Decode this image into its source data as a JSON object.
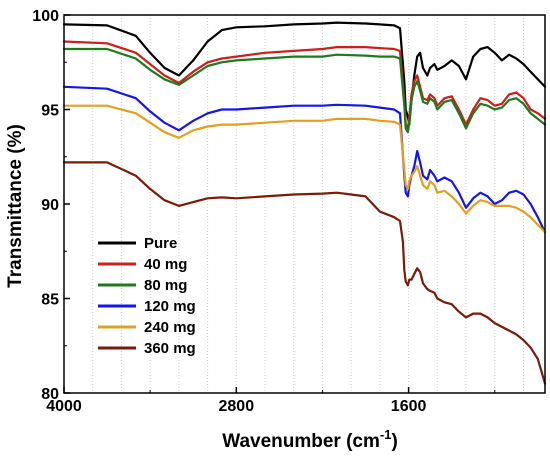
{
  "chart_data": {
    "type": "line",
    "xlabel": "Wavenumber (cm",
    "xlabel_sup": "-1",
    "xlabel_tail": ")",
    "ylabel": "Transmittance (%)",
    "xlim": [
      4000,
      650
    ],
    "ylim": [
      80,
      100
    ],
    "x_ticks": [
      4000,
      2800,
      1600
    ],
    "y_ticks": [
      80,
      85,
      90,
      95,
      100
    ],
    "grid": true,
    "legend_position": "bottom-left",
    "colors": {
      "Pure": "#000000",
      "40 mg": "#cc1f1a",
      "80 mg": "#1f7a1f",
      "120 mg": "#1515e6",
      "240 mg": "#e0a020",
      "360 mg": "#7a1a0a"
    },
    "series": [
      {
        "name": "Pure",
        "points": [
          [
            4000,
            99.5
          ],
          [
            3700,
            99.45
          ],
          [
            3500,
            98.9
          ],
          [
            3400,
            98.0
          ],
          [
            3300,
            97.2
          ],
          [
            3200,
            96.8
          ],
          [
            3100,
            97.6
          ],
          [
            3000,
            98.6
          ],
          [
            2900,
            99.2
          ],
          [
            2800,
            99.35
          ],
          [
            2600,
            99.4
          ],
          [
            2400,
            99.5
          ],
          [
            2200,
            99.55
          ],
          [
            2100,
            99.6
          ],
          [
            1900,
            99.55
          ],
          [
            1800,
            99.5
          ],
          [
            1700,
            99.45
          ],
          [
            1660,
            99.3
          ],
          [
            1630,
            96.5
          ],
          [
            1620,
            95.0
          ],
          [
            1605,
            94.6
          ],
          [
            1595,
            94.2
          ],
          [
            1580,
            95.5
          ],
          [
            1560,
            96.8
          ],
          [
            1540,
            97.8
          ],
          [
            1520,
            98.0
          ],
          [
            1500,
            97.2
          ],
          [
            1470,
            96.8
          ],
          [
            1450,
            97.2
          ],
          [
            1420,
            97.4
          ],
          [
            1400,
            97.1
          ],
          [
            1350,
            97.3
          ],
          [
            1300,
            97.6
          ],
          [
            1250,
            97.3
          ],
          [
            1200,
            96.6
          ],
          [
            1150,
            97.8
          ],
          [
            1100,
            98.2
          ],
          [
            1050,
            98.3
          ],
          [
            1000,
            98.0
          ],
          [
            950,
            97.6
          ],
          [
            900,
            97.9
          ],
          [
            850,
            97.7
          ],
          [
            800,
            97.4
          ],
          [
            750,
            97.0
          ],
          [
            700,
            96.6
          ],
          [
            650,
            96.2
          ]
        ]
      },
      {
        "name": "40 mg",
        "points": [
          [
            4000,
            98.6
          ],
          [
            3700,
            98.5
          ],
          [
            3500,
            98.0
          ],
          [
            3400,
            97.4
          ],
          [
            3300,
            96.8
          ],
          [
            3200,
            96.4
          ],
          [
            3100,
            97.0
          ],
          [
            3000,
            97.5
          ],
          [
            2900,
            97.7
          ],
          [
            2800,
            97.8
          ],
          [
            2600,
            98.0
          ],
          [
            2400,
            98.1
          ],
          [
            2200,
            98.2
          ],
          [
            2100,
            98.3
          ],
          [
            1900,
            98.3
          ],
          [
            1800,
            98.25
          ],
          [
            1700,
            98.2
          ],
          [
            1660,
            98.1
          ],
          [
            1630,
            95.5
          ],
          [
            1620,
            94.2
          ],
          [
            1605,
            94.0
          ],
          [
            1595,
            94.6
          ],
          [
            1580,
            95.8
          ],
          [
            1560,
            96.5
          ],
          [
            1540,
            96.8
          ],
          [
            1520,
            96.2
          ],
          [
            1500,
            95.6
          ],
          [
            1470,
            95.5
          ],
          [
            1450,
            95.8
          ],
          [
            1420,
            95.6
          ],
          [
            1400,
            95.2
          ],
          [
            1350,
            95.6
          ],
          [
            1300,
            95.7
          ],
          [
            1250,
            95.0
          ],
          [
            1200,
            94.2
          ],
          [
            1150,
            95.0
          ],
          [
            1100,
            95.6
          ],
          [
            1050,
            95.5
          ],
          [
            1000,
            95.2
          ],
          [
            950,
            95.3
          ],
          [
            900,
            95.8
          ],
          [
            850,
            95.9
          ],
          [
            800,
            95.6
          ],
          [
            750,
            95.0
          ],
          [
            700,
            94.8
          ],
          [
            650,
            94.5
          ]
        ]
      },
      {
        "name": "80 mg",
        "points": [
          [
            4000,
            98.2
          ],
          [
            3700,
            98.2
          ],
          [
            3500,
            97.7
          ],
          [
            3400,
            97.1
          ],
          [
            3300,
            96.6
          ],
          [
            3200,
            96.3
          ],
          [
            3100,
            96.8
          ],
          [
            3000,
            97.3
          ],
          [
            2900,
            97.5
          ],
          [
            2800,
            97.6
          ],
          [
            2600,
            97.7
          ],
          [
            2400,
            97.8
          ],
          [
            2200,
            97.8
          ],
          [
            2100,
            97.9
          ],
          [
            1900,
            97.85
          ],
          [
            1800,
            97.8
          ],
          [
            1700,
            97.8
          ],
          [
            1660,
            97.7
          ],
          [
            1630,
            95.2
          ],
          [
            1620,
            94.0
          ],
          [
            1605,
            93.8
          ],
          [
            1595,
            94.3
          ],
          [
            1580,
            95.5
          ],
          [
            1560,
            96.2
          ],
          [
            1540,
            96.5
          ],
          [
            1520,
            96.0
          ],
          [
            1500,
            95.4
          ],
          [
            1470,
            95.3
          ],
          [
            1450,
            95.6
          ],
          [
            1420,
            95.4
          ],
          [
            1400,
            95.0
          ],
          [
            1350,
            95.4
          ],
          [
            1300,
            95.5
          ],
          [
            1250,
            94.8
          ],
          [
            1200,
            94.0
          ],
          [
            1150,
            94.8
          ],
          [
            1100,
            95.3
          ],
          [
            1050,
            95.2
          ],
          [
            1000,
            95.0
          ],
          [
            950,
            95.1
          ],
          [
            900,
            95.5
          ],
          [
            850,
            95.6
          ],
          [
            800,
            95.3
          ],
          [
            750,
            94.8
          ],
          [
            700,
            94.5
          ],
          [
            650,
            94.2
          ]
        ]
      },
      {
        "name": "120 mg",
        "points": [
          [
            4000,
            96.2
          ],
          [
            3700,
            96.1
          ],
          [
            3500,
            95.6
          ],
          [
            3400,
            94.9
          ],
          [
            3300,
            94.3
          ],
          [
            3200,
            93.9
          ],
          [
            3100,
            94.4
          ],
          [
            3000,
            94.8
          ],
          [
            2900,
            95.0
          ],
          [
            2800,
            95.0
          ],
          [
            2600,
            95.1
          ],
          [
            2400,
            95.2
          ],
          [
            2200,
            95.2
          ],
          [
            2100,
            95.25
          ],
          [
            1900,
            95.2
          ],
          [
            1800,
            95.1
          ],
          [
            1700,
            95.0
          ],
          [
            1660,
            94.8
          ],
          [
            1630,
            91.5
          ],
          [
            1620,
            90.6
          ],
          [
            1605,
            90.4
          ],
          [
            1595,
            91.0
          ],
          [
            1580,
            91.5
          ],
          [
            1560,
            92.0
          ],
          [
            1540,
            92.8
          ],
          [
            1520,
            92.2
          ],
          [
            1500,
            91.5
          ],
          [
            1470,
            91.3
          ],
          [
            1450,
            91.8
          ],
          [
            1420,
            91.5
          ],
          [
            1400,
            91.2
          ],
          [
            1350,
            91.4
          ],
          [
            1300,
            91.2
          ],
          [
            1250,
            90.6
          ],
          [
            1200,
            89.8
          ],
          [
            1150,
            90.3
          ],
          [
            1100,
            90.6
          ],
          [
            1050,
            90.4
          ],
          [
            1000,
            90.0
          ],
          [
            950,
            90.2
          ],
          [
            900,
            90.6
          ],
          [
            850,
            90.7
          ],
          [
            800,
            90.5
          ],
          [
            750,
            90.0
          ],
          [
            700,
            89.3
          ],
          [
            650,
            88.5
          ]
        ]
      },
      {
        "name": "240 mg",
        "points": [
          [
            4000,
            95.2
          ],
          [
            3700,
            95.2
          ],
          [
            3500,
            94.8
          ],
          [
            3400,
            94.3
          ],
          [
            3300,
            93.8
          ],
          [
            3200,
            93.5
          ],
          [
            3100,
            93.9
          ],
          [
            3000,
            94.1
          ],
          [
            2900,
            94.2
          ],
          [
            2800,
            94.2
          ],
          [
            2600,
            94.3
          ],
          [
            2400,
            94.4
          ],
          [
            2200,
            94.4
          ],
          [
            2100,
            94.5
          ],
          [
            1900,
            94.5
          ],
          [
            1800,
            94.4
          ],
          [
            1700,
            94.35
          ],
          [
            1660,
            94.2
          ],
          [
            1630,
            91.8
          ],
          [
            1620,
            91.0
          ],
          [
            1605,
            90.8
          ],
          [
            1595,
            91.2
          ],
          [
            1580,
            91.5
          ],
          [
            1560,
            91.7
          ],
          [
            1540,
            92.0
          ],
          [
            1520,
            91.5
          ],
          [
            1500,
            91.0
          ],
          [
            1470,
            90.8
          ],
          [
            1450,
            91.2
          ],
          [
            1420,
            91.0
          ],
          [
            1400,
            90.6
          ],
          [
            1350,
            90.7
          ],
          [
            1300,
            90.4
          ],
          [
            1250,
            90.0
          ],
          [
            1200,
            89.5
          ],
          [
            1150,
            89.9
          ],
          [
            1100,
            90.2
          ],
          [
            1050,
            90.1
          ],
          [
            1000,
            89.9
          ],
          [
            950,
            89.9
          ],
          [
            900,
            89.9
          ],
          [
            850,
            89.8
          ],
          [
            800,
            89.6
          ],
          [
            750,
            89.3
          ],
          [
            700,
            88.9
          ],
          [
            650,
            88.5
          ]
        ]
      },
      {
        "name": "360 mg",
        "points": [
          [
            4000,
            92.2
          ],
          [
            3700,
            92.2
          ],
          [
            3500,
            91.5
          ],
          [
            3400,
            90.8
          ],
          [
            3300,
            90.2
          ],
          [
            3200,
            89.9
          ],
          [
            3100,
            90.1
          ],
          [
            3000,
            90.3
          ],
          [
            2900,
            90.35
          ],
          [
            2800,
            90.3
          ],
          [
            2600,
            90.4
          ],
          [
            2400,
            90.5
          ],
          [
            2200,
            90.55
          ],
          [
            2100,
            90.6
          ],
          [
            2000,
            90.5
          ],
          [
            1900,
            90.4
          ],
          [
            1800,
            89.6
          ],
          [
            1700,
            89.3
          ],
          [
            1660,
            89.1
          ],
          [
            1640,
            88.0
          ],
          [
            1630,
            86.5
          ],
          [
            1620,
            85.9
          ],
          [
            1605,
            85.7
          ],
          [
            1595,
            86.0
          ],
          [
            1580,
            86.0
          ],
          [
            1560,
            86.3
          ],
          [
            1540,
            86.6
          ],
          [
            1520,
            86.4
          ],
          [
            1500,
            85.8
          ],
          [
            1470,
            85.5
          ],
          [
            1450,
            85.4
          ],
          [
            1420,
            85.3
          ],
          [
            1400,
            85.0
          ],
          [
            1350,
            84.8
          ],
          [
            1300,
            84.7
          ],
          [
            1250,
            84.3
          ],
          [
            1200,
            84.0
          ],
          [
            1150,
            84.2
          ],
          [
            1100,
            84.2
          ],
          [
            1050,
            84.0
          ],
          [
            1000,
            83.7
          ],
          [
            950,
            83.5
          ],
          [
            900,
            83.3
          ],
          [
            850,
            83.1
          ],
          [
            800,
            82.8
          ],
          [
            750,
            82.4
          ],
          [
            700,
            81.8
          ],
          [
            650,
            80.5
          ]
        ]
      }
    ]
  }
}
